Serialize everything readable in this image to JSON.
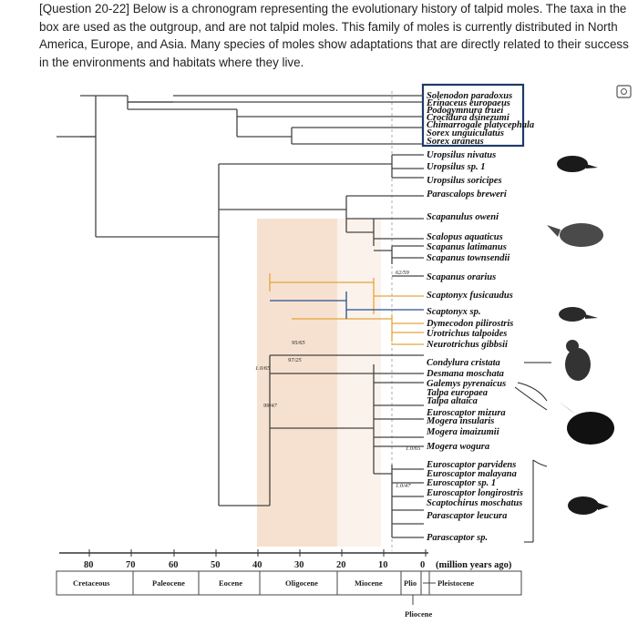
{
  "question": "[Question 20-22] Below is a chronogram representing the evolutionary history of talpid moles. The taxa in the box are used as the outgroup, and are not talpid moles. This family of moles is currently distributed in North America, Europe, and Asia. Many species of moles show adaptations that are directly related to their success in the environments and habitats where they live.",
  "taxa": [
    "Solenodon paradoxus",
    "Erinaceus europaeus",
    "Podogymnura truei",
    "Crocidura dsinezumi",
    "Chimarrogale platycephala",
    "Sorex unguiculatus",
    "Sorex araneus",
    "Uropsilus nivatus",
    "Uropsilus sp. 1",
    "Uropsilus soricipes",
    "Parascalops breweri",
    "Scapanulus oweni",
    "Scalopus aquaticus",
    "Scapanus latimanus",
    "Scapanus townsendii",
    "Scapanus orarius",
    "Scaptonyx fusicaudus",
    "Scaptonyx sp.",
    "Dymecodon pilirostris",
    "Urotrichus talpoides",
    "Neurotrichus gibbsii",
    "Condylura cristata",
    "Desmana moschata",
    "Galemys pyrenaicus",
    "Talpa europaea",
    "Talpa altaica",
    "Euroscaptor mizura",
    "Mogera insularis",
    "Mogera imaizumii",
    "Mogera wogura",
    "Euroscaptor parvidens",
    "Euroscaptor malayana",
    "Euroscaptor sp. 1",
    "Euroscaptor longirostris",
    "Scaptochirus moschatus",
    "Parascaptor leucura",
    "Parascaptor sp."
  ],
  "node_labels": [
    "62/59",
    "95/65",
    "97/25",
    "1.0/65",
    "99/47",
    "1.0/65",
    "1.0/47"
  ],
  "axis": {
    "ticks": [
      "80",
      "70",
      "60",
      "50",
      "40",
      "30",
      "20",
      "10",
      "0"
    ],
    "unit": "(million years ago)"
  },
  "epochs": [
    "Cretaceous",
    "Paleocene",
    "Eocene",
    "Oligocene",
    "Miocene",
    "Plio",
    "Pleistocene",
    "Pliocene"
  ],
  "colors": {
    "outgroup_box": "#1f3a6b",
    "orange_branch": "#e7a33a",
    "blue_branch": "#2a4f8a",
    "shade": "#f4d9c4"
  },
  "icons": [
    "screenshot-icon",
    "mole-silhouette-icon"
  ]
}
